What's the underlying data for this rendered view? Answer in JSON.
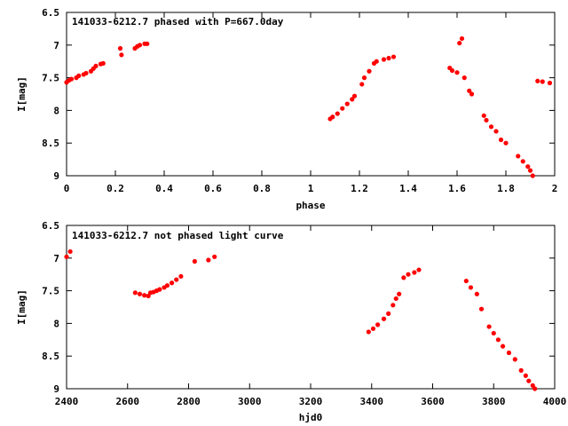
{
  "chart_data": [
    {
      "type": "scatter",
      "title": "141033-6212.7 phased with P=667.0day",
      "xlabel": "phase",
      "ylabel": "I[mag]",
      "xlim": [
        0,
        2
      ],
      "ylim": [
        6.5,
        9
      ],
      "y_inverted": true,
      "grid": false,
      "color": "#ff0000",
      "xticks": [
        "0",
        "0.2",
        "0.4",
        "0.6",
        "0.8",
        "1",
        "1.2",
        "1.4",
        "1.6",
        "1.8",
        "2"
      ],
      "yticks": [
        "6.5",
        "7",
        "7.5",
        "8",
        "8.5",
        "9"
      ],
      "series": [
        {
          "x": [
            0.0,
            0.01,
            0.02,
            0.04,
            0.05,
            0.07,
            0.08,
            0.1,
            0.11,
            0.12,
            0.14,
            0.15,
            0.22,
            0.225,
            0.28,
            0.29,
            0.3,
            0.32,
            0.33,
            1.08,
            1.09,
            1.11,
            1.13,
            1.15,
            1.17,
            1.18,
            1.21,
            1.22,
            1.24,
            1.26,
            1.27,
            1.3,
            1.32,
            1.34,
            1.57,
            1.58,
            1.6,
            1.61,
            1.62,
            1.63,
            1.65,
            1.66,
            1.71,
            1.72,
            1.74,
            1.76,
            1.78,
            1.8,
            1.85,
            1.87,
            1.89,
            1.9,
            1.91,
            1.93,
            1.95,
            1.98
          ],
          "y": [
            7.57,
            7.54,
            7.52,
            7.5,
            7.47,
            7.45,
            7.43,
            7.4,
            7.36,
            7.32,
            7.29,
            7.28,
            7.05,
            7.15,
            7.05,
            7.02,
            7.0,
            6.98,
            6.98,
            8.13,
            8.1,
            8.05,
            7.97,
            7.9,
            7.83,
            7.78,
            7.6,
            7.5,
            7.4,
            7.28,
            7.25,
            7.22,
            7.2,
            7.18,
            7.35,
            7.39,
            7.42,
            6.97,
            6.9,
            7.5,
            7.7,
            7.75,
            8.08,
            8.15,
            8.25,
            8.32,
            8.45,
            8.5,
            8.7,
            8.78,
            8.86,
            8.92,
            9.0,
            7.55,
            7.56,
            7.58
          ]
        }
      ]
    },
    {
      "type": "scatter",
      "title": "141033-6212.7 not phased light curve",
      "xlabel": "hjd0",
      "ylabel": "I[mag]",
      "xlim": [
        2400,
        4000
      ],
      "ylim": [
        6.5,
        9
      ],
      "y_inverted": true,
      "grid": false,
      "color": "#ff0000",
      "xticks": [
        "2400",
        "2600",
        "2800",
        "3000",
        "3200",
        "3400",
        "3600",
        "3800",
        "4000"
      ],
      "yticks": [
        "6.5",
        "7",
        "7.5",
        "8",
        "8.5",
        "9"
      ],
      "series": [
        {
          "x": [
            2400,
            2412,
            2625,
            2640,
            2655,
            2668,
            2675,
            2685,
            2695,
            2705,
            2720,
            2730,
            2745,
            2760,
            2775,
            2820,
            2865,
            2885,
            3390,
            3405,
            3420,
            3440,
            3455,
            3470,
            3480,
            3490,
            3505,
            3520,
            3540,
            3555,
            3710,
            3725,
            3745,
            3760,
            3785,
            3800,
            3815,
            3830,
            3850,
            3870,
            3890,
            3905,
            3915,
            3928,
            3935
          ],
          "y": [
            6.98,
            6.9,
            7.53,
            7.55,
            7.57,
            7.58,
            7.53,
            7.52,
            7.5,
            7.48,
            7.45,
            7.42,
            7.38,
            7.33,
            7.28,
            7.05,
            7.03,
            6.98,
            8.13,
            8.08,
            8.02,
            7.93,
            7.85,
            7.72,
            7.62,
            7.55,
            7.3,
            7.25,
            7.22,
            7.18,
            7.35,
            7.45,
            7.55,
            7.78,
            8.05,
            8.15,
            8.25,
            8.35,
            8.45,
            8.55,
            8.72,
            8.8,
            8.88,
            8.95,
            9.0
          ]
        }
      ]
    }
  ]
}
